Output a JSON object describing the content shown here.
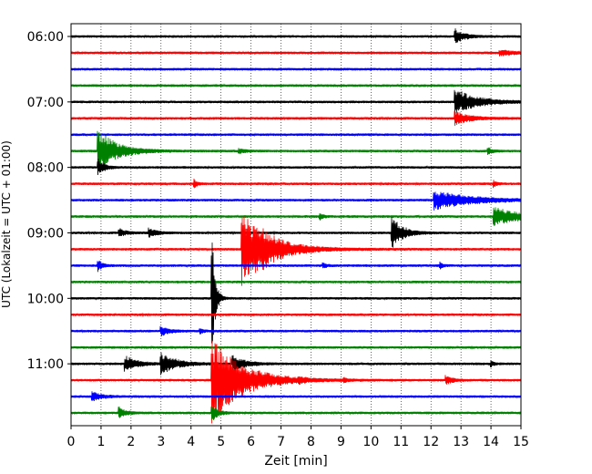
{
  "chart_data": {
    "type": "line",
    "title": "",
    "xlabel": "Zeit  [min]",
    "ylabel": "UTC (Lokalzeit = UTC + 01:00)",
    "xlim": [
      0,
      15
    ],
    "x_ticks": [
      "0",
      "1",
      "2",
      "3",
      "4",
      "5",
      "6",
      "7",
      "8",
      "9",
      "10",
      "11",
      "12",
      "13",
      "14",
      "15"
    ],
    "y_tick_labels": [
      "06:00",
      "07:00",
      "08:00",
      "09:00",
      "10:00",
      "11:00"
    ],
    "trace_interval_minutes": 15,
    "first_trace": "06:00",
    "trace_count": 24,
    "color_cycle": [
      "#000000",
      "#ff0000",
      "#0000ff",
      "#008000"
    ],
    "vertical_grid": "dotted",
    "events": [
      {
        "trace": 0,
        "minute": 12.8,
        "amplitude": 0.9,
        "duration": 0.3,
        "trace_time": "06:00"
      },
      {
        "trace": 1,
        "minute": 14.3,
        "amplitude": 0.3,
        "duration": 0.6,
        "trace_time": "06:15"
      },
      {
        "trace": 4,
        "minute": 12.8,
        "amplitude": 1.6,
        "duration": 0.7
      },
      {
        "trace": 5,
        "minute": 12.8,
        "amplitude": 0.8,
        "duration": 0.5
      },
      {
        "trace": 7,
        "minute": 0.9,
        "amplitude": 2.8,
        "duration": 0.6
      },
      {
        "trace": 7,
        "minute": 5.6,
        "amplitude": 0.3,
        "duration": 0.2
      },
      {
        "trace": 7,
        "minute": 13.9,
        "amplitude": 0.4,
        "duration": 0.15
      },
      {
        "trace": 8,
        "minute": 0.9,
        "amplitude": 1.0,
        "duration": 0.2
      },
      {
        "trace": 9,
        "minute": 4.1,
        "amplitude": 0.5,
        "duration": 0.1
      },
      {
        "trace": 9,
        "minute": 14.1,
        "amplitude": 0.4,
        "duration": 0.1
      },
      {
        "trace": 10,
        "minute": 12.1,
        "amplitude": 1.2,
        "duration": 1.2
      },
      {
        "trace": 11,
        "minute": 14.1,
        "amplitude": 1.1,
        "duration": 0.9
      },
      {
        "trace": 11,
        "minute": 8.3,
        "amplitude": 0.4,
        "duration": 0.1
      },
      {
        "trace": 12,
        "minute": 10.7,
        "amplitude": 2.0,
        "duration": 0.35
      },
      {
        "trace": 12,
        "minute": 2.6,
        "amplitude": 0.6,
        "duration": 0.25
      },
      {
        "trace": 12,
        "minute": 1.6,
        "amplitude": 0.5,
        "duration": 0.25
      },
      {
        "trace": 13,
        "minute": 5.7,
        "amplitude": 4.6,
        "duration": 0.9
      },
      {
        "trace": 13,
        "minute": 6.4,
        "amplitude": 0.6,
        "duration": 0.3
      },
      {
        "trace": 14,
        "minute": 0.9,
        "amplitude": 0.7,
        "duration": 0.15
      },
      {
        "trace": 14,
        "minute": 8.4,
        "amplitude": 0.4,
        "duration": 0.1
      },
      {
        "trace": 14,
        "minute": 12.3,
        "amplitude": 0.4,
        "duration": 0.1
      },
      {
        "trace": 16,
        "minute": 4.7,
        "amplitude": 8.5,
        "duration": 0.1
      },
      {
        "trace": 18,
        "minute": 3.0,
        "amplitude": 0.6,
        "duration": 0.25
      },
      {
        "trace": 18,
        "minute": 4.3,
        "amplitude": 0.4,
        "duration": 0.1
      },
      {
        "trace": 20,
        "minute": 1.8,
        "amplitude": 1.1,
        "duration": 0.35
      },
      {
        "trace": 20,
        "minute": 3.0,
        "amplitude": 1.3,
        "duration": 0.5
      },
      {
        "trace": 20,
        "minute": 5.4,
        "amplitude": 1.0,
        "duration": 0.4
      },
      {
        "trace": 20,
        "minute": 14.0,
        "amplitude": 0.4,
        "duration": 0.1
      },
      {
        "trace": 21,
        "minute": 4.7,
        "amplitude": 5.2,
        "duration": 1.0
      },
      {
        "trace": 21,
        "minute": 12.5,
        "amplitude": 0.6,
        "duration": 0.2
      },
      {
        "trace": 21,
        "minute": 7.6,
        "amplitude": 0.3,
        "duration": 0.1
      },
      {
        "trace": 21,
        "minute": 9.1,
        "amplitude": 0.3,
        "duration": 0.1
      },
      {
        "trace": 22,
        "minute": 0.7,
        "amplitude": 0.6,
        "duration": 0.3
      },
      {
        "trace": 23,
        "minute": 4.7,
        "amplitude": 1.0,
        "duration": 0.2
      },
      {
        "trace": 23,
        "minute": 1.6,
        "amplitude": 0.8,
        "duration": 0.2
      }
    ]
  }
}
